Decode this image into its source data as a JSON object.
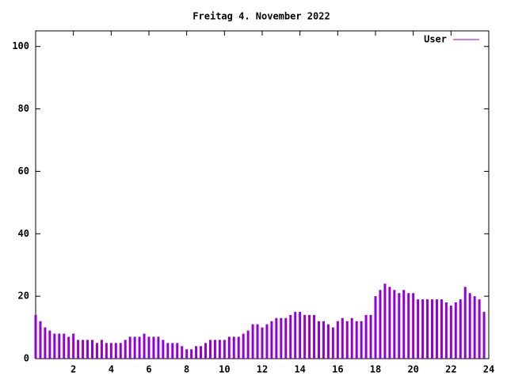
{
  "chart_data": {
    "type": "impulse",
    "title": "Freitag 4. November 2022",
    "x": [
      0,
      0.25,
      0.5,
      0.75,
      1,
      1.25,
      1.5,
      1.75,
      2,
      2.25,
      2.5,
      2.75,
      3,
      3.25,
      3.5,
      3.75,
      4,
      4.25,
      4.5,
      4.75,
      5,
      5.25,
      5.5,
      5.75,
      6,
      6.25,
      6.5,
      6.75,
      7,
      7.25,
      7.5,
      7.75,
      8,
      8.25,
      8.5,
      8.75,
      9,
      9.25,
      9.5,
      9.75,
      10,
      10.25,
      10.5,
      10.75,
      11,
      11.25,
      11.5,
      11.75,
      12,
      12.25,
      12.5,
      12.75,
      13,
      13.25,
      13.5,
      13.75,
      14,
      14.25,
      14.5,
      14.75,
      15,
      15.25,
      15.5,
      15.75,
      16,
      16.25,
      16.5,
      16.75,
      17,
      17.25,
      17.5,
      17.75,
      18,
      18.25,
      18.5,
      18.75,
      19,
      19.25,
      19.5,
      19.75,
      20,
      20.25,
      20.5,
      20.75,
      21,
      21.25,
      21.5,
      21.75,
      22,
      22.25,
      22.5,
      22.75,
      23,
      23.25,
      23.5,
      23.75
    ],
    "series": [
      {
        "name": "User",
        "color": "#9400d3",
        "values": [
          14,
          12,
          10,
          9,
          8,
          8,
          8,
          7,
          8,
          6,
          6,
          6,
          6,
          5,
          6,
          5,
          5,
          5,
          5,
          6,
          7,
          7,
          7,
          8,
          7,
          7,
          7,
          6,
          5,
          5,
          5,
          4,
          3,
          3,
          4,
          4,
          5,
          6,
          6,
          6,
          6,
          7,
          7,
          7,
          8,
          9,
          11,
          11,
          10,
          11,
          12,
          13,
          13,
          13,
          14,
          15,
          15,
          14,
          14,
          14,
          12,
          12,
          11,
          10,
          12,
          13,
          12,
          13,
          12,
          12,
          14,
          14,
          20,
          22,
          24,
          23,
          22,
          21,
          22,
          21,
          21,
          19,
          19,
          19,
          19,
          19,
          19,
          18,
          17,
          18,
          19,
          23,
          21,
          20,
          19,
          15
        ]
      }
    ],
    "xlim": [
      0,
      24
    ],
    "xticks": [
      2,
      4,
      6,
      8,
      10,
      12,
      14,
      16,
      18,
      20,
      22,
      24
    ],
    "ylim": [
      0,
      105
    ],
    "yticks": [
      0,
      20,
      40,
      60,
      80,
      100
    ],
    "legend": "top-right"
  }
}
